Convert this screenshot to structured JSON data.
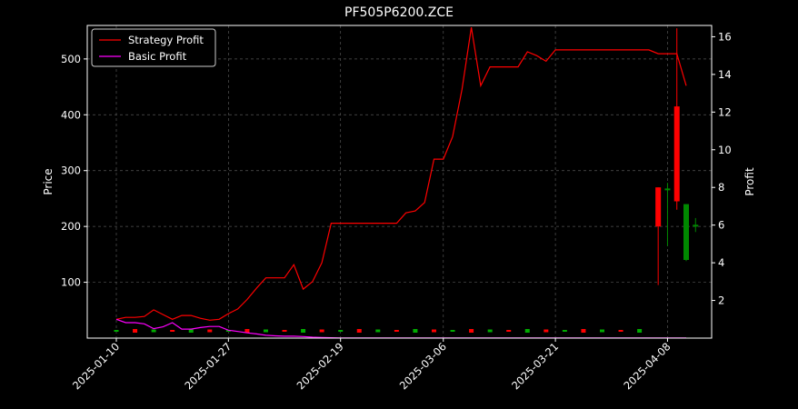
{
  "chart_data": {
    "type": "line",
    "title": "PF505P6200.ZCE",
    "xlabel": "",
    "ylabel": "Price",
    "ylabel_right": "Profit",
    "ylim": [
      0,
      560
    ],
    "ylim_right": [
      0,
      16.6
    ],
    "yticks": [
      100,
      200,
      300,
      400,
      500
    ],
    "yticks_right": [
      2,
      4,
      6,
      8,
      10,
      12,
      14,
      16
    ],
    "xticks": [
      "2025-01-10",
      "2025-01-27",
      "2025-02-19",
      "2025-03-06",
      "2025-03-21",
      "2025-04-08"
    ],
    "grid": true,
    "legend_position": "upper-left",
    "series": [
      {
        "name": "Strategy Profit",
        "axis": "right",
        "color": "#ff0000",
        "values": [
          1.0,
          1.1,
          1.1,
          1.15,
          1.5,
          1.25,
          1.0,
          1.2,
          1.2,
          1.05,
          0.95,
          1.0,
          1.3,
          1.55,
          2.05,
          2.65,
          3.2,
          3.2,
          3.2,
          3.9,
          2.6,
          3.0,
          4.0,
          6.1,
          6.1,
          6.1,
          6.1,
          6.1,
          6.1,
          6.1,
          6.1,
          6.65,
          6.75,
          7.2,
          9.5,
          9.5,
          10.7,
          13.2,
          16.5,
          13.4,
          14.4,
          14.4,
          14.4,
          14.4,
          15.2,
          15.0,
          14.7,
          15.3,
          15.3,
          15.3,
          15.3,
          15.3,
          15.3,
          15.3,
          15.3,
          15.3,
          15.3,
          15.3,
          15.1,
          15.1,
          15.1,
          13.4
        ]
      },
      {
        "name": "Basic Profit",
        "axis": "right",
        "color": "#ff00ff",
        "values": [
          1.0,
          0.82,
          0.82,
          0.76,
          0.5,
          0.6,
          0.82,
          0.48,
          0.48,
          0.56,
          0.62,
          0.62,
          0.42,
          0.35,
          0.28,
          0.22,
          0.15,
          0.12,
          0.1,
          0.1,
          0.08,
          0.05,
          0.03,
          0.02,
          0.01,
          0.01,
          0.01,
          0.01,
          0.01,
          0.01,
          0.01,
          0.01,
          0.01,
          0.01,
          0.01,
          0.01,
          0.01,
          0.01,
          0.01,
          0.01,
          0.01,
          0.01,
          0.01,
          0.01,
          0.01,
          0.01,
          0.01,
          0.01,
          0.01,
          0.01,
          0.01,
          0.01,
          0.01,
          0.01,
          0.01,
          0.01,
          0.01,
          0.01,
          0.01,
          0.01,
          0.01,
          0.01
        ]
      }
    ],
    "candles": [
      {
        "i": 58,
        "open": 270,
        "close": 200,
        "high": 270,
        "low": 95
      },
      {
        "i": 59,
        "open": 265,
        "close": 268,
        "high": 278,
        "low": 165
      },
      {
        "i": 60,
        "open": 415,
        "close": 245,
        "high": 555,
        "low": 230
      },
      {
        "i": 61,
        "open": 140,
        "close": 240,
        "high": 240,
        "low": 138
      },
      {
        "i": 62,
        "open": 200,
        "close": 203,
        "high": 215,
        "low": 190
      }
    ],
    "small_candles_note": "low-price candles near zero along the bottom"
  }
}
